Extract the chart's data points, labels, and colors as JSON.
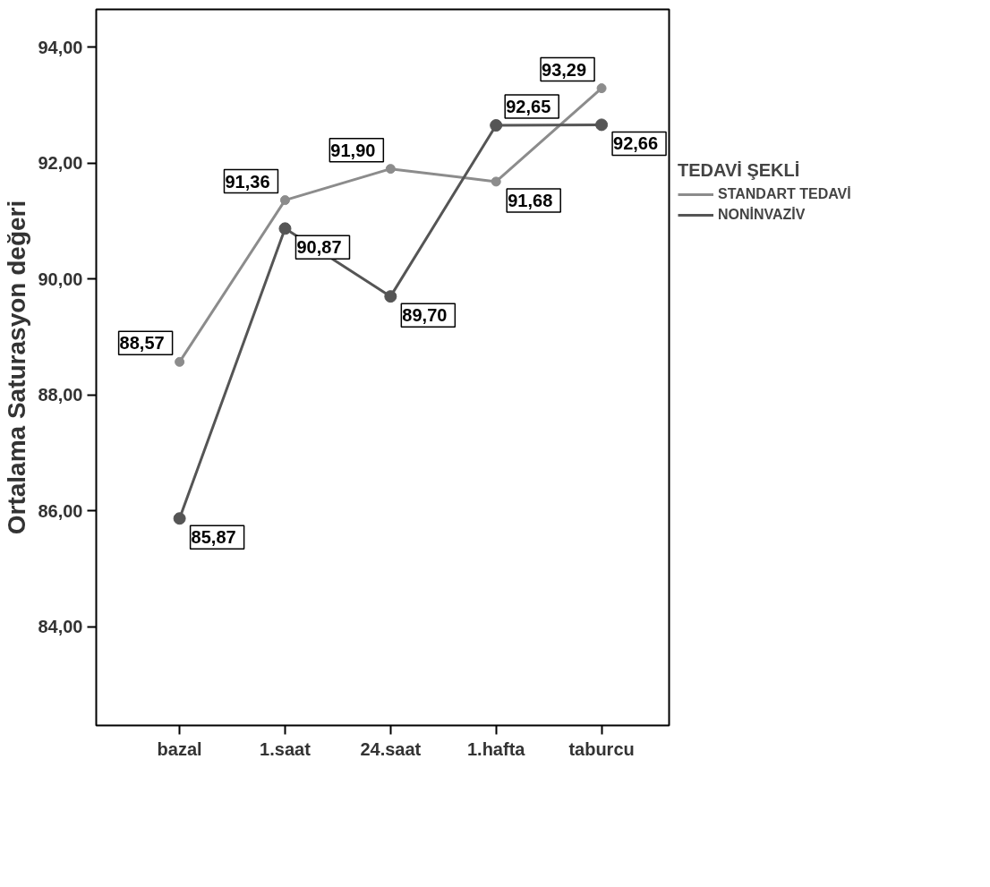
{
  "chart_data": {
    "type": "line",
    "ylabel": "Ortalama Saturasyon değeri",
    "legend_title": "TEDAVİ ŞEKLİ",
    "categories": [
      "bazal",
      "1.saat",
      "24.saat",
      "1.hafta",
      "taburcu"
    ],
    "series": [
      {
        "name": "STANDART TEDAVİ",
        "color": "#8c8c8c",
        "values": [
          88.57,
          91.36,
          91.9,
          91.68,
          93.29
        ],
        "value_labels": [
          "88,57",
          "91,36",
          "91,90",
          "91,68",
          "93,29"
        ]
      },
      {
        "name": "NONİNVAZİV",
        "color": "#555555",
        "values": [
          85.87,
          90.87,
          89.7,
          92.65,
          92.66
        ],
        "value_labels": [
          "85,87",
          "90,87",
          "89,70",
          "92,65",
          "92,66"
        ]
      }
    ],
    "ylim": [
      82.3,
      94.65
    ],
    "yticks": [
      {
        "value": 84,
        "label": "84,00"
      },
      {
        "value": 86,
        "label": "86,00"
      },
      {
        "value": 88,
        "label": "88,00"
      },
      {
        "value": 90,
        "label": "90,00"
      },
      {
        "value": 92,
        "label": "92,00"
      },
      {
        "value": 94,
        "label": "94,00"
      }
    ],
    "grid": false,
    "legend": "right",
    "marker": "circle",
    "line_style": "solid"
  }
}
